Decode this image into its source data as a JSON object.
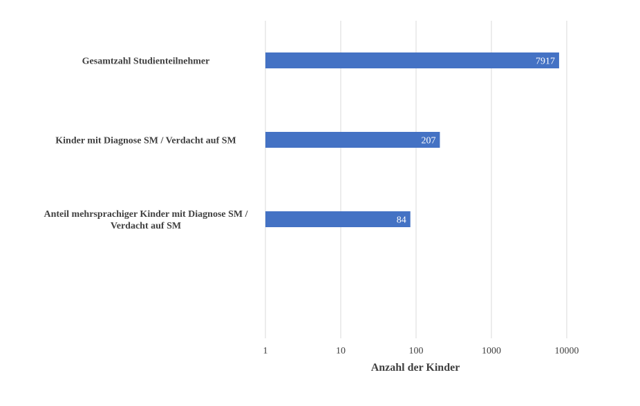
{
  "chart_data": {
    "type": "bar",
    "orientation": "horizontal",
    "x_scale": "log",
    "categories": [
      "Gesamtzahl Studienteilnehmer",
      "Kinder mit Diagnose SM / Verdacht auf SM",
      "Anteil mehrsprachiger Kinder mit Diagnose SM / Verdacht auf SM"
    ],
    "values": [
      7917,
      207,
      84
    ],
    "data_labels": [
      "7917",
      "207",
      "84"
    ],
    "xlabel": "Anzahl der Kinder",
    "ylabel": "",
    "xlim": [
      1,
      10000
    ],
    "x_ticks": [
      "1",
      "10",
      "100",
      "1000",
      "10000"
    ],
    "grid": true,
    "legend": "none",
    "bar_color": "#4472c4"
  }
}
